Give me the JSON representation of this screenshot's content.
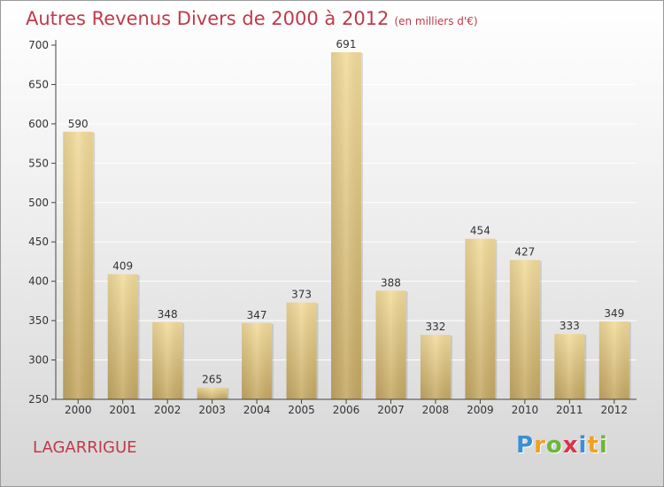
{
  "title": "Autres Revenus Divers de 2000 à 2012",
  "subtitle": "(en milliers d'€)",
  "commune": "LAGARRIGUE",
  "logo": {
    "letters": [
      {
        "char": "P",
        "color": "#3a8fd6"
      },
      {
        "char": "r",
        "color": "#f0a020"
      },
      {
        "char": "o",
        "color": "#6cb83a"
      },
      {
        "char": "x",
        "color": "#e0304a"
      },
      {
        "char": "i",
        "color": "#3a8fd6"
      },
      {
        "char": "t",
        "color": "#f0a020"
      },
      {
        "char": "i",
        "color": "#6cb83a"
      }
    ]
  },
  "colors": {
    "bar_light": "#f3dc9c",
    "bar_dark": "#c4a863",
    "axis": "#444444",
    "grid": "#ffffff"
  },
  "chart_data": {
    "type": "bar",
    "title": "Autres Revenus Divers de 2000 à 2012",
    "subtitle": "(en milliers d'€)",
    "categories": [
      "2000",
      "2001",
      "2002",
      "2003",
      "2004",
      "2005",
      "2006",
      "2007",
      "2008",
      "2009",
      "2010",
      "2011",
      "2012"
    ],
    "values": [
      590,
      409,
      348,
      265,
      347,
      373,
      691,
      388,
      332,
      454,
      427,
      333,
      349
    ],
    "ylim": [
      250,
      700
    ],
    "yticks": [
      250,
      300,
      350,
      400,
      450,
      500,
      550,
      600,
      650,
      700
    ],
    "grid": true,
    "legend": "none"
  }
}
